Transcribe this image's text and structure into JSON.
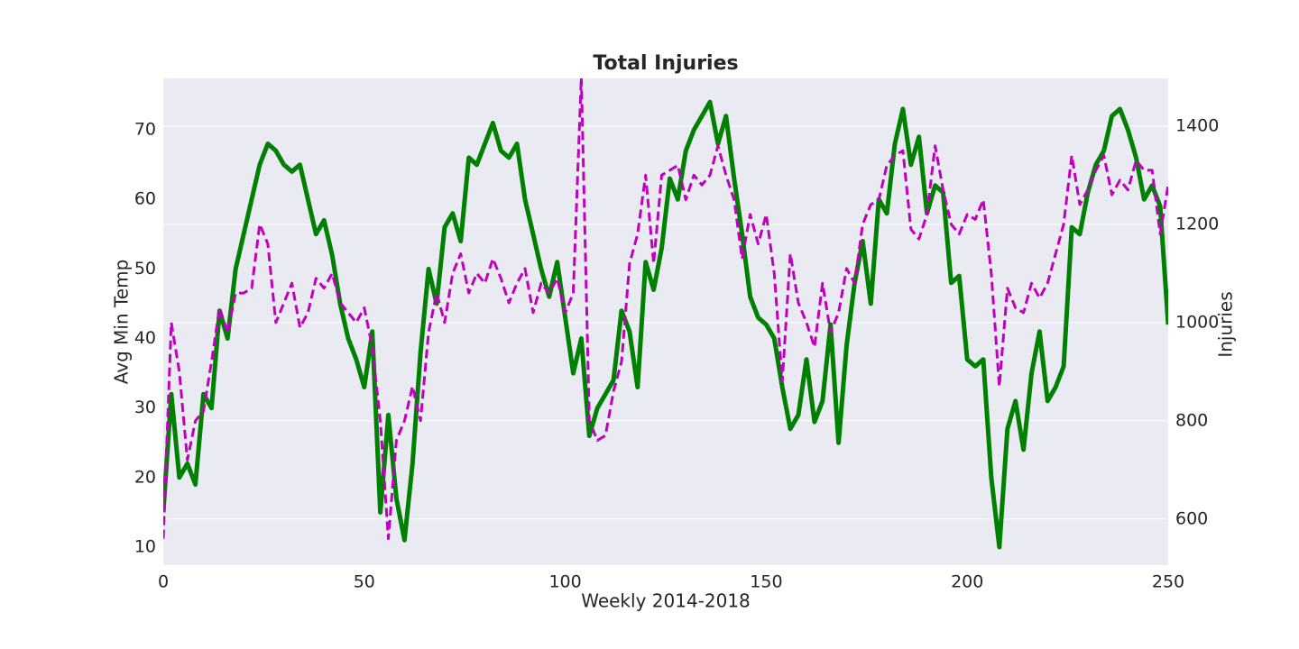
{
  "chart_data": {
    "type": "line",
    "title": "Total Injuries",
    "x_label": "Weekly 2014-2018",
    "y_label": "Avg Min Temp",
    "y2_label": "Injuries",
    "x": [
      0,
      2,
      4,
      6,
      8,
      10,
      12,
      14,
      16,
      18,
      20,
      22,
      24,
      26,
      28,
      30,
      32,
      34,
      36,
      38,
      40,
      42,
      44,
      46,
      48,
      50,
      52,
      54,
      56,
      58,
      60,
      62,
      64,
      66,
      68,
      70,
      72,
      74,
      76,
      78,
      80,
      82,
      84,
      86,
      88,
      90,
      92,
      94,
      96,
      98,
      100,
      102,
      104,
      106,
      108,
      110,
      112,
      114,
      116,
      118,
      120,
      122,
      124,
      126,
      128,
      130,
      132,
      134,
      136,
      138,
      140,
      142,
      144,
      146,
      148,
      150,
      152,
      154,
      156,
      158,
      160,
      162,
      164,
      166,
      168,
      170,
      172,
      174,
      176,
      178,
      180,
      182,
      184,
      186,
      188,
      190,
      192,
      194,
      196,
      198,
      200,
      202,
      204,
      206,
      208,
      210,
      212,
      214,
      216,
      218,
      220,
      222,
      224,
      226,
      228,
      230,
      232,
      234,
      236,
      238,
      240,
      242,
      244,
      246,
      248,
      250
    ],
    "series": [
      {
        "color": "#008000",
        "dash": "solid",
        "width": 5,
        "values": [
          15,
          32,
          20,
          22,
          19,
          32,
          30,
          44,
          40,
          50,
          55,
          60,
          65,
          68,
          67,
          65,
          64,
          65,
          60,
          55,
          57,
          52,
          45,
          40,
          37,
          33,
          41,
          15,
          29,
          17,
          11,
          22,
          38,
          50,
          45,
          56,
          58,
          54,
          66,
          65,
          68,
          71,
          67,
          66,
          68,
          60,
          55,
          50,
          46,
          51,
          43,
          35,
          40,
          26,
          30,
          32,
          34,
          44,
          41,
          33,
          51,
          47,
          53,
          63,
          60,
          67,
          70,
          72,
          74,
          68,
          72,
          63,
          55,
          46,
          43,
          42,
          40,
          33,
          27,
          29,
          37,
          28,
          31,
          42,
          25,
          39,
          48,
          54,
          45,
          60,
          58,
          68,
          73,
          65,
          69,
          58,
          62,
          61,
          48,
          49,
          37,
          36,
          37,
          20,
          10,
          27,
          31,
          24,
          35,
          41,
          31,
          33,
          36,
          56,
          55,
          61,
          65,
          67,
          72,
          73,
          70,
          66,
          60,
          62,
          59,
          42
        ]
      },
      {
        "color": "#bf00bf",
        "dash": "dashed",
        "width": 3,
        "axis": "y2",
        "values": [
          560,
          1000,
          900,
          720,
          800,
          820,
          920,
          1030,
          980,
          1060,
          1060,
          1070,
          1200,
          1160,
          1000,
          1040,
          1080,
          990,
          1020,
          1090,
          1070,
          1100,
          1040,
          1020,
          1000,
          1030,
          950,
          800,
          560,
          760,
          800,
          870,
          800,
          980,
          1060,
          1000,
          1100,
          1140,
          1060,
          1100,
          1080,
          1130,
          1090,
          1040,
          1080,
          1110,
          1020,
          1080,
          1060,
          1090,
          1020,
          1060,
          1500,
          800,
          760,
          770,
          860,
          920,
          1120,
          1180,
          1300,
          1120,
          1300,
          1310,
          1320,
          1250,
          1300,
          1280,
          1300,
          1360,
          1300,
          1250,
          1130,
          1220,
          1160,
          1220,
          1100,
          880,
          1140,
          1040,
          1000,
          950,
          1080,
          980,
          1020,
          1110,
          1080,
          1200,
          1240,
          1250,
          1320,
          1340,
          1350,
          1190,
          1170,
          1220,
          1360,
          1270,
          1200,
          1180,
          1220,
          1210,
          1250,
          1100,
          870,
          1070,
          1030,
          1020,
          1080,
          1050,
          1080,
          1140,
          1200,
          1340,
          1240,
          1270,
          1310,
          1340,
          1260,
          1290,
          1270,
          1330,
          1310,
          1310,
          1180,
          1280
        ]
      }
    ],
    "xlim": [
      0,
      250
    ],
    "xticks": [
      0,
      50,
      100,
      150,
      200,
      250
    ],
    "ylim": [
      7.4,
      77.4
    ],
    "yticks": [
      10,
      20,
      30,
      40,
      50,
      60,
      70
    ],
    "y2lim": [
      506,
      1497
    ],
    "y2ticks": [
      600,
      800,
      1000,
      1200,
      1400
    ],
    "grid": "y2",
    "background": "#eaeaf2"
  }
}
